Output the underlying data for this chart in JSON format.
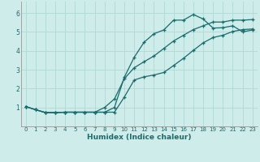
{
  "xlabel": "Humidex (Indice chaleur)",
  "bg_color": "#ceecea",
  "line_color": "#1a6b6b",
  "grid_color": "#b0d8d4",
  "xlim": [
    -0.5,
    23.5
  ],
  "ylim": [
    0,
    6.6
  ],
  "xticks": [
    0,
    1,
    2,
    3,
    4,
    5,
    6,
    7,
    8,
    9,
    10,
    11,
    12,
    13,
    14,
    15,
    16,
    17,
    18,
    19,
    20,
    21,
    22,
    23
  ],
  "yticks": [
    1,
    2,
    3,
    4,
    5,
    6
  ],
  "curve1_x": [
    0,
    1,
    2,
    3,
    4,
    5,
    6,
    7,
    8,
    9,
    10,
    11,
    12,
    13,
    14,
    15,
    16,
    17,
    18,
    19,
    20,
    21,
    22,
    23
  ],
  "curve1_y": [
    1.05,
    0.88,
    0.73,
    0.73,
    0.75,
    0.75,
    0.75,
    0.75,
    0.75,
    1.0,
    2.6,
    3.65,
    4.45,
    4.9,
    5.1,
    5.62,
    5.62,
    5.92,
    5.68,
    5.2,
    5.22,
    5.32,
    5.0,
    5.1
  ],
  "curve2_x": [
    0,
    1,
    2,
    3,
    4,
    5,
    6,
    7,
    8,
    9,
    10,
    11,
    12,
    13,
    14,
    15,
    16,
    17,
    18,
    19,
    20,
    21,
    22,
    23
  ],
  "curve2_y": [
    1.05,
    0.88,
    0.73,
    0.73,
    0.75,
    0.75,
    0.75,
    0.75,
    0.75,
    0.75,
    1.55,
    2.45,
    2.62,
    2.72,
    2.85,
    3.22,
    3.6,
    4.02,
    4.42,
    4.7,
    4.82,
    5.02,
    5.12,
    5.15
  ],
  "curve3_x": [
    0,
    1,
    2,
    3,
    4,
    5,
    6,
    7,
    8,
    9,
    10,
    11,
    12,
    13,
    14,
    15,
    16,
    17,
    18,
    19,
    20,
    21,
    22,
    23
  ],
  "curve3_y": [
    1.05,
    0.88,
    0.73,
    0.73,
    0.75,
    0.75,
    0.75,
    0.75,
    1.0,
    1.45,
    2.52,
    3.1,
    3.42,
    3.72,
    4.12,
    4.52,
    4.82,
    5.12,
    5.32,
    5.52,
    5.52,
    5.62,
    5.62,
    5.65
  ]
}
